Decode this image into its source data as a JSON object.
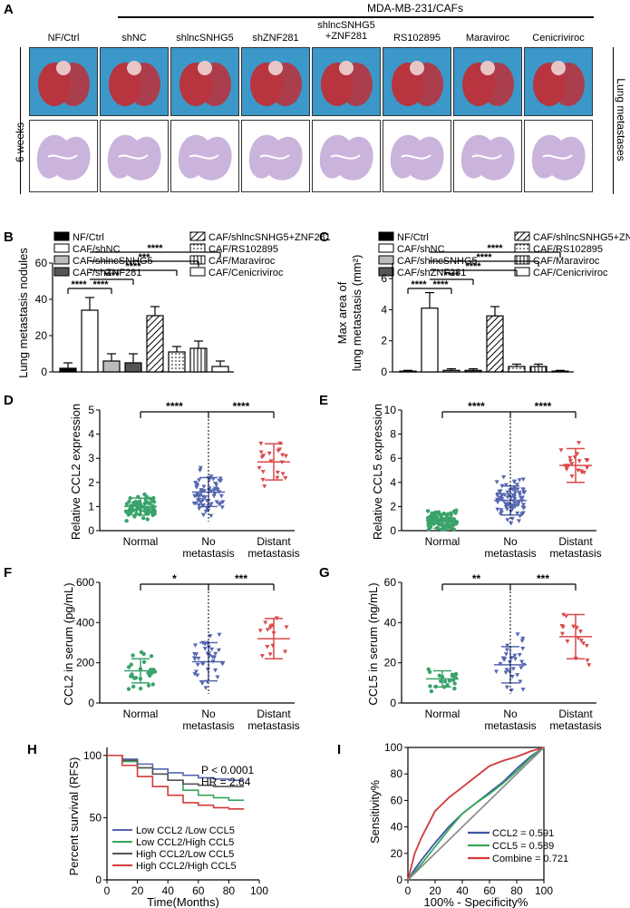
{
  "panel_letters": [
    "A",
    "B",
    "C",
    "D",
    "E",
    "F",
    "G",
    "H",
    "I"
  ],
  "panelA": {
    "top_label": "MDA-MB-231/CAFs",
    "columns": [
      "NF/Ctrl",
      "shNC",
      "shlncSNHG5",
      "shZNF281",
      "shlncSNHG5\n+ZNF281",
      "RS102895",
      "Maraviroc",
      "Cenicriviroc"
    ],
    "left_label": "6 weeks",
    "right_label": "Lung metastases",
    "colors": {
      "tile_bg": "#3b98c8",
      "lung": "#b8343f",
      "he_stain": "#b89bd0"
    }
  },
  "legend_B": [
    "NF/Ctrl",
    "CAF/shNC",
    "CAF/shlncSNHG5",
    "CAF/shZNF281",
    "CAF/shlncSNHG5+ZNF281",
    "CAF/RS102895",
    "CAF/Maraviroc",
    "CAF/Cenicriviroc"
  ],
  "chart_data": [
    {
      "panel": "B",
      "type": "bar",
      "title": "",
      "categories": [
        "NF/Ctrl",
        "CAF/shNC",
        "CAF/shlncSNHG5",
        "CAF/shZNF281",
        "CAF/shlncSNHG5+ZNF281",
        "CAF/RS102895",
        "CAF/Maraviroc",
        "CAF/Cenicriviroc"
      ],
      "values": [
        2,
        34,
        6,
        5,
        31,
        11,
        13,
        3
      ],
      "errors": [
        3,
        7,
        4,
        5,
        5,
        3,
        4,
        3
      ],
      "ylabel": "Lung metastasis nodules",
      "ylim": [
        0,
        60
      ],
      "yticks": [
        "0",
        "20",
        "40",
        "60"
      ],
      "significance": [
        "****",
        "****",
        "****",
        "****",
        "***",
        "****"
      ]
    },
    {
      "panel": "C",
      "type": "bar",
      "title": "",
      "categories": [
        "NF/Ctrl",
        "CAF/shNC",
        "CAF/shlncSNHG5",
        "CAF/shZNF281",
        "CAF/shlncSNHG5+ZNF281",
        "CAF/RS102895",
        "CAF/Maraviroc",
        "CAF/Cenicriviroc"
      ],
      "values": [
        0.05,
        4.1,
        0.1,
        0.1,
        3.6,
        0.35,
        0.35,
        0.05
      ],
      "errors": [
        0.05,
        1.0,
        0.1,
        0.1,
        0.6,
        0.15,
        0.15,
        0.05
      ],
      "ylabel": "Max area of lung metastasis (mm²)",
      "ylim": [
        0,
        7
      ],
      "yticks": [
        "0",
        "2",
        "4",
        "6"
      ],
      "significance": [
        "****",
        "****",
        "****",
        "****",
        "****",
        "****"
      ]
    },
    {
      "panel": "D",
      "type": "scatter",
      "categories": [
        "Normal",
        "No metastasis",
        "Distant metastasis"
      ],
      "means": [
        1.0,
        1.6,
        2.85
      ],
      "sd": [
        0.35,
        0.6,
        0.75
      ],
      "n": [
        70,
        70,
        20
      ],
      "ylabel": "Relative  CCL2  expression",
      "ylim": [
        0,
        5
      ],
      "yticks": [
        "0",
        "1",
        "2",
        "3",
        "4",
        "5"
      ],
      "significance": [
        "****",
        "****"
      ]
    },
    {
      "panel": "E",
      "type": "scatter",
      "categories": [
        "Normal",
        "No metastasis",
        "Distant metastasis"
      ],
      "means": [
        0.8,
        2.5,
        5.4
      ],
      "sd": [
        0.6,
        1.2,
        1.4
      ],
      "n": [
        90,
        80,
        20
      ],
      "ylabel": "Relative  CCL5  expression",
      "ylim": [
        0,
        10
      ],
      "yticks": [
        "0",
        "2",
        "4",
        "6",
        "8",
        "10"
      ],
      "significance": [
        "****",
        "****"
      ]
    },
    {
      "panel": "F",
      "type": "scatter",
      "categories": [
        "Normal",
        "No metastasis",
        "Distant metastasis"
      ],
      "means": [
        160,
        205,
        320
      ],
      "sd": [
        60,
        95,
        100
      ],
      "n": [
        25,
        35,
        14
      ],
      "ylabel": "CCL2 in serum (pg/mL)",
      "ylim": [
        0,
        600
      ],
      "yticks": [
        "0",
        "200",
        "400",
        "600"
      ],
      "significance": [
        "*",
        "***"
      ]
    },
    {
      "panel": "G",
      "type": "scatter",
      "categories": [
        "Normal",
        "No metastasis",
        "Distant metastasis"
      ],
      "means": [
        12,
        19,
        33
      ],
      "sd": [
        4,
        9,
        11
      ],
      "n": [
        22,
        30,
        16
      ],
      "ylabel": "CCL5 in serum (ng/mL)",
      "ylim": [
        0,
        60
      ],
      "yticks": [
        "0",
        "20",
        "40",
        "60"
      ],
      "significance": [
        "**",
        "***"
      ]
    },
    {
      "panel": "H",
      "type": "line",
      "xlabel": "Time(Months)",
      "ylabel": "Percent survival (RFS)",
      "xlim": [
        0,
        100
      ],
      "ylim": [
        0,
        100
      ],
      "xticks": [
        "0",
        "20",
        "40",
        "60",
        "80",
        "100"
      ],
      "yticks": [
        "0",
        "50",
        "100"
      ],
      "annotations": [
        "P < 0.0001",
        "HR = 2.64"
      ],
      "series": [
        {
          "name": "Low CCL2 /Low CCL5",
          "x": [
            0,
            10,
            20,
            30,
            40,
            50,
            60,
            70,
            80,
            90
          ],
          "y": [
            100,
            97,
            93,
            89,
            86,
            84,
            82,
            81,
            80,
            80
          ]
        },
        {
          "name": "Low CCL2/High CCL5",
          "x": [
            0,
            10,
            20,
            30,
            40,
            50,
            60,
            70,
            80,
            90
          ],
          "y": [
            100,
            95,
            90,
            85,
            80,
            72,
            68,
            66,
            64,
            64
          ]
        },
        {
          "name": "High CCL2/Low CCL5",
          "x": [
            0,
            10,
            20,
            30,
            40,
            50,
            60,
            70,
            80,
            90
          ],
          "y": [
            100,
            96,
            90,
            85,
            80,
            77,
            76,
            75,
            75,
            75
          ]
        },
        {
          "name": "High CCL2/High CCL5",
          "x": [
            0,
            10,
            20,
            30,
            40,
            50,
            60,
            70,
            80,
            90
          ],
          "y": [
            100,
            92,
            83,
            75,
            68,
            62,
            60,
            58,
            57,
            57
          ]
        }
      ],
      "colors": [
        "#5566b0",
        "#35a85a",
        "#555555",
        "#d23a3a"
      ]
    },
    {
      "panel": "I",
      "type": "line",
      "xlabel": "100% - Specificity%",
      "ylabel": "Sensitivity%",
      "xlim": [
        0,
        100
      ],
      "ylim": [
        0,
        100
      ],
      "xticks": [
        "0",
        "20",
        "40",
        "60",
        "80",
        "100"
      ],
      "yticks": [
        "0",
        "20",
        "40",
        "60",
        "80",
        "100"
      ],
      "series": [
        {
          "name": "CCL2 = 0.591",
          "x": [
            0,
            5,
            10,
            20,
            30,
            40,
            50,
            60,
            70,
            80,
            90,
            100
          ],
          "y": [
            0,
            8,
            15,
            28,
            40,
            50,
            58,
            66,
            74,
            84,
            93,
            100
          ]
        },
        {
          "name": "CCL5 = 0.589",
          "x": [
            0,
            5,
            10,
            20,
            30,
            40,
            50,
            60,
            70,
            80,
            90,
            100
          ],
          "y": [
            0,
            6,
            12,
            25,
            38,
            50,
            58,
            65,
            73,
            82,
            92,
            100
          ]
        },
        {
          "name": "Combine = 0.721",
          "x": [
            0,
            5,
            10,
            20,
            30,
            40,
            50,
            60,
            70,
            80,
            90,
            100
          ],
          "y": [
            0,
            20,
            32,
            52,
            62,
            70,
            78,
            86,
            90,
            93,
            97,
            100
          ]
        },
        {
          "name": "reference",
          "x": [
            0,
            100
          ],
          "y": [
            0,
            100
          ]
        }
      ],
      "colors": [
        "#3f55a8",
        "#35a85a",
        "#d23a3a",
        "#888888"
      ]
    }
  ]
}
